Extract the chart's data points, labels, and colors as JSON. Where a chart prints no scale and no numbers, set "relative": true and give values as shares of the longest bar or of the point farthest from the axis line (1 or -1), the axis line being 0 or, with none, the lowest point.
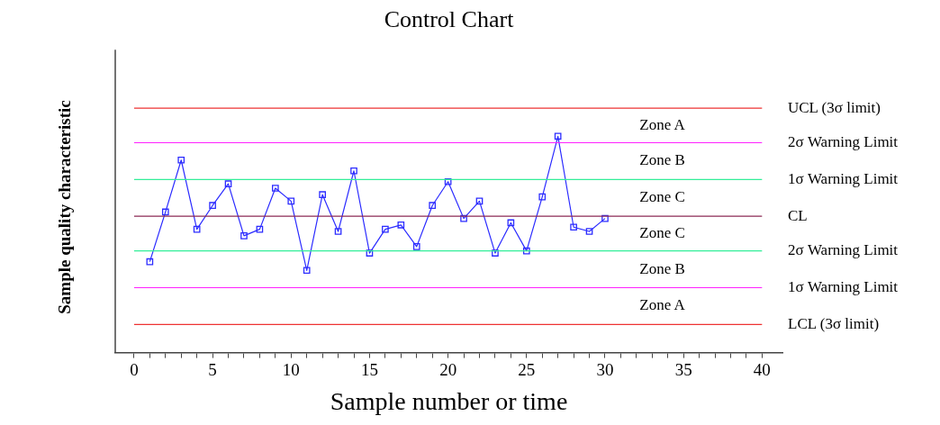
{
  "chart_data": {
    "type": "line",
    "title": "Control Chart",
    "xlabel": "Sample number or time",
    "ylabel": "Sample quality characteristic",
    "relative": true,
    "x": [
      1,
      2,
      3,
      4,
      5,
      6,
      7,
      8,
      9,
      10,
      11,
      12,
      13,
      14,
      15,
      16,
      17,
      18,
      19,
      20,
      21,
      22,
      23,
      24,
      25,
      26,
      27,
      28,
      29,
      30
    ],
    "series": [
      {
        "color": "#2b2bff",
        "values": [
          0.42,
          0.65,
          0.89,
          0.57,
          0.68,
          0.78,
          0.54,
          0.57,
          0.76,
          0.7,
          0.38,
          0.73,
          0.56,
          0.84,
          0.46,
          0.57,
          0.59,
          0.49,
          0.68,
          0.79,
          0.62,
          0.7,
          0.46,
          0.6,
          0.47,
          0.72,
          1,
          0.58,
          0.56,
          0.62
        ]
      }
    ],
    "xlim": [
      -1.2,
      41.3
    ],
    "xticks": [
      0,
      {
        "value": 1,
        "label": null
      },
      {
        "value": 2,
        "label": null
      },
      {
        "value": 3,
        "label": null
      },
      {
        "value": 4,
        "label": null
      },
      5,
      {
        "value": 6,
        "label": null
      },
      {
        "value": 7,
        "label": null
      },
      {
        "value": 8,
        "label": null
      },
      {
        "value": 9,
        "label": null
      },
      10,
      {
        "value": 11,
        "label": null
      },
      {
        "value": 12,
        "label": null
      },
      {
        "value": 13,
        "label": null
      },
      {
        "value": 14,
        "label": null
      },
      15,
      {
        "value": 16,
        "label": null
      },
      {
        "value": 17,
        "label": null
      },
      {
        "value": 18,
        "label": null
      },
      {
        "value": 19,
        "label": null
      },
      20,
      {
        "value": 21,
        "label": null
      },
      {
        "value": 22,
        "label": null
      },
      {
        "value": 23,
        "label": null
      },
      {
        "value": 24,
        "label": null
      },
      25,
      {
        "value": 26,
        "label": null
      },
      {
        "value": 27,
        "label": null
      },
      {
        "value": 28,
        "label": null
      },
      {
        "value": 29,
        "label": null
      },
      30,
      {
        "value": 31,
        "label": null
      },
      {
        "value": 32,
        "label": null
      },
      {
        "value": 33,
        "label": null
      },
      {
        "value": 34,
        "label": null
      },
      35,
      {
        "value": 36,
        "label": null
      },
      {
        "value": 37,
        "label": null
      },
      {
        "value": 38,
        "label": null
      },
      {
        "value": 39,
        "label": null
      },
      40
    ],
    "ref_lines": [
      {
        "axis": "y",
        "value": 1.13,
        "label": "UCL (3σ limit)",
        "color": "#ee3333"
      },
      {
        "axis": "y",
        "value": 0.97,
        "label": "2σ Warning Limit",
        "color": "#ff22ff"
      },
      {
        "axis": "y",
        "value": 0.8,
        "label": "1σ Warning Limit",
        "color": "#33ee99"
      },
      {
        "axis": "y",
        "value": 0.63,
        "label": "CL",
        "color": "#8b2a55"
      },
      {
        "axis": "y",
        "value": 0.47,
        "label": "2σ Warning Limit",
        "color": "#33ee99"
      },
      {
        "axis": "y",
        "value": 0.3,
        "label": "1σ Warning Limit",
        "color": "#ff22ff"
      },
      {
        "axis": "y",
        "value": 0.13,
        "label": "LCL (3σ limit)",
        "color": "#ee3333"
      }
    ],
    "annotations": [
      "Zone A",
      "Zone B",
      "Zone C",
      "Zone C",
      "Zone B",
      "Zone A"
    ],
    "grid": false,
    "legend": false,
    "marker": "square",
    "line_style": "solid"
  }
}
